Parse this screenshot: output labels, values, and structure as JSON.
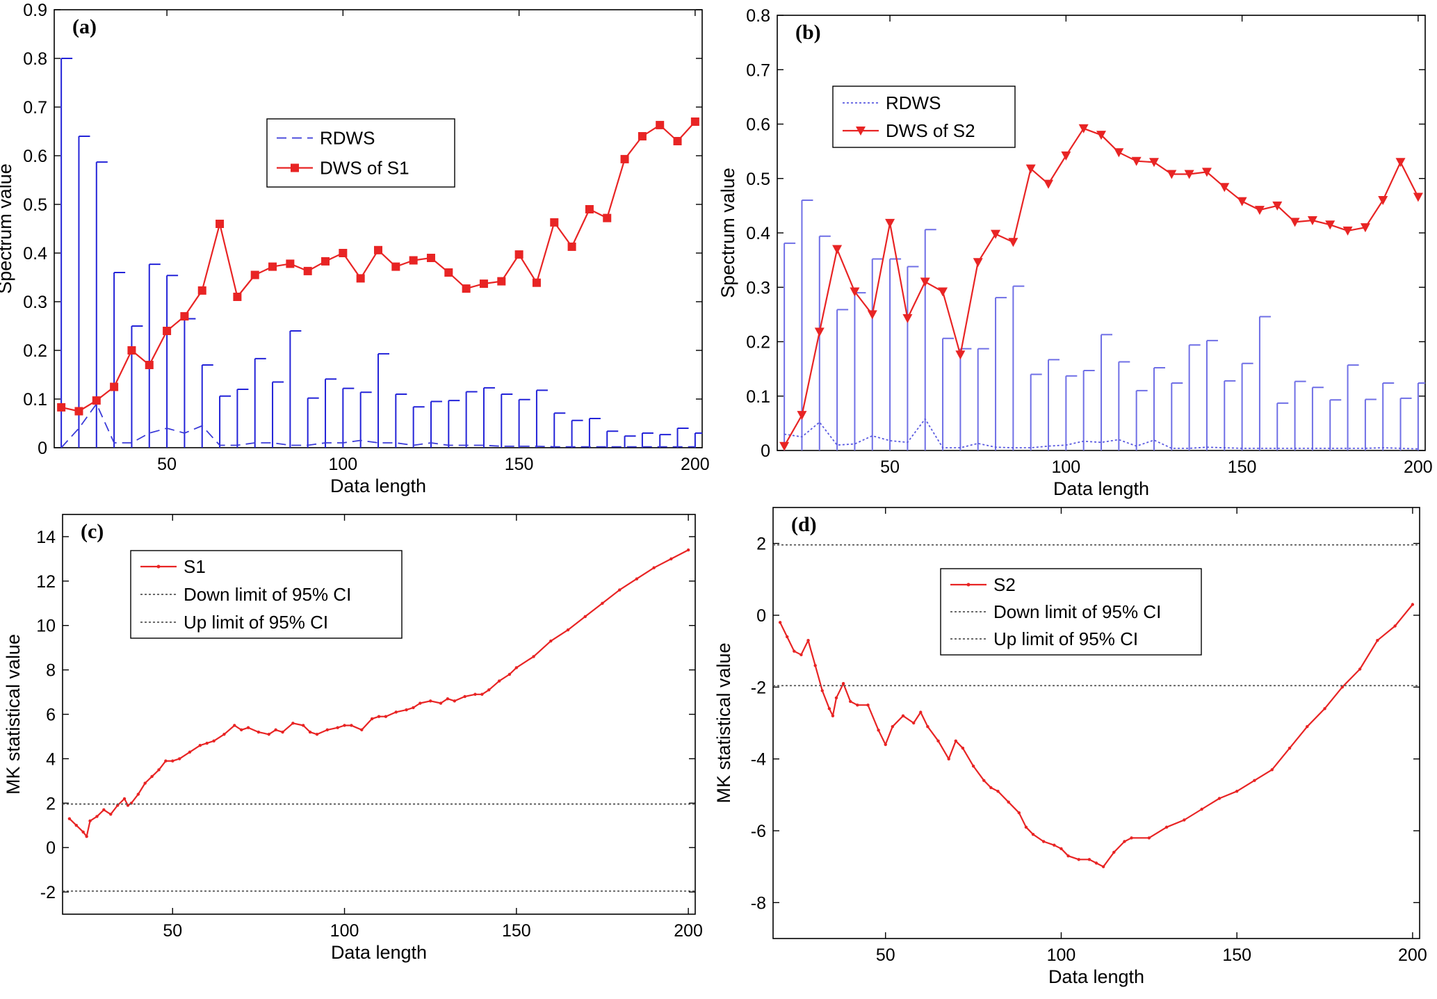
{
  "chart_data": [
    {
      "panel": "(a)",
      "type": "line",
      "xlabel": "Data length",
      "ylabel": "Spectrum value",
      "xlim": [
        18,
        202
      ],
      "ylim": [
        0,
        0.9
      ],
      "xticks": [
        50,
        100,
        150,
        200
      ],
      "yticks": [
        0,
        0.1,
        0.2,
        0.3,
        0.4,
        0.5,
        0.6,
        0.7,
        0.8,
        0.9
      ],
      "legend_position": "center",
      "errorbar_color": "#2323d8",
      "x": [
        20,
        25,
        30,
        35,
        40,
        45,
        50,
        55,
        60,
        65,
        70,
        75,
        80,
        85,
        90,
        95,
        100,
        105,
        110,
        115,
        120,
        125,
        130,
        135,
        140,
        145,
        150,
        155,
        160,
        165,
        170,
        175,
        180,
        185,
        190,
        195,
        200
      ],
      "series": [
        {
          "name": "RDWS",
          "style": "dashed",
          "color": "#3a3ad8",
          "values": [
            0.0,
            0.04,
            0.09,
            0.01,
            0.01,
            0.03,
            0.04,
            0.03,
            0.045,
            0.005,
            0.005,
            0.01,
            0.01,
            0.005,
            0.005,
            0.01,
            0.01,
            0.015,
            0.01,
            0.01,
            0.005,
            0.01,
            0.005,
            0.005,
            0.005,
            0.003,
            0.003,
            0.003,
            0.002,
            0.002,
            0.002,
            0.002,
            0.002,
            0.002,
            0.002,
            0.002,
            0.002
          ],
          "upper": [
            0.8,
            0.64,
            0.587,
            0.36,
            0.25,
            0.377,
            0.354,
            0.265,
            0.17,
            0.106,
            0.12,
            0.183,
            0.135,
            0.24,
            0.102,
            0.141,
            0.122,
            0.114,
            0.193,
            0.11,
            0.084,
            0.095,
            0.097,
            0.115,
            0.123,
            0.11,
            0.099,
            0.118,
            0.071,
            0.056,
            0.06,
            0.034,
            0.024,
            0.03,
            0.027,
            0.04,
            0.03
          ]
        },
        {
          "name": "DWS of S1",
          "style": "solid",
          "marker": "square",
          "color": "#e82424",
          "values": [
            0.083,
            0.075,
            0.097,
            0.125,
            0.2,
            0.17,
            0.24,
            0.27,
            0.323,
            0.46,
            0.31,
            0.355,
            0.372,
            0.378,
            0.363,
            0.383,
            0.4,
            0.348,
            0.406,
            0.372,
            0.385,
            0.39,
            0.36,
            0.327,
            0.337,
            0.342,
            0.397,
            0.339,
            0.463,
            0.413,
            0.49,
            0.472,
            0.593,
            0.64,
            0.663,
            0.63,
            0.67
          ]
        }
      ]
    },
    {
      "panel": "(b)",
      "type": "line",
      "xlabel": "Data length",
      "ylabel": "Spectrum value",
      "xlim": [
        18,
        202
      ],
      "ylim": [
        0,
        0.8
      ],
      "xticks": [
        50,
        100,
        150,
        200
      ],
      "yticks": [
        0,
        0.1,
        0.2,
        0.3,
        0.4,
        0.5,
        0.6,
        0.7,
        0.8
      ],
      "legend_position": "top-left",
      "errorbar_color": "#6f6fe6",
      "x": [
        20,
        25,
        30,
        35,
        40,
        45,
        50,
        55,
        60,
        65,
        70,
        75,
        80,
        85,
        90,
        95,
        100,
        105,
        110,
        115,
        120,
        125,
        130,
        135,
        140,
        145,
        150,
        155,
        160,
        165,
        170,
        175,
        180,
        185,
        190,
        195,
        200
      ],
      "series": [
        {
          "name": "RDWS",
          "style": "dotted",
          "color": "#5a5ae0",
          "values": [
            0.03,
            0.025,
            0.052,
            0.01,
            0.012,
            0.027,
            0.018,
            0.015,
            0.058,
            0.005,
            0.005,
            0.013,
            0.006,
            0.005,
            0.005,
            0.008,
            0.01,
            0.017,
            0.015,
            0.02,
            0.008,
            0.019,
            0.004,
            0.004,
            0.006,
            0.005,
            0.004,
            0.004,
            0.004,
            0.004,
            0.004,
            0.004,
            0.004,
            0.004,
            0.005,
            0.004,
            0.003
          ],
          "upper": [
            0.381,
            0.46,
            0.394,
            0.259,
            0.29,
            0.352,
            0.352,
            0.338,
            0.406,
            0.206,
            0.187,
            0.187,
            0.281,
            0.302,
            0.14,
            0.167,
            0.137,
            0.147,
            0.213,
            0.163,
            0.11,
            0.152,
            0.124,
            0.194,
            0.202,
            0.128,
            0.16,
            0.246,
            0.087,
            0.127,
            0.116,
            0.093,
            0.157,
            0.094,
            0.124,
            0.096,
            0.124
          ]
        },
        {
          "name": "DWS of S2",
          "style": "solid",
          "marker": "triangle-down",
          "color": "#e82424",
          "values": [
            0.008,
            0.065,
            0.218,
            0.37,
            0.292,
            0.25,
            0.418,
            0.243,
            0.31,
            0.292,
            0.176,
            0.346,
            0.398,
            0.383,
            0.518,
            0.49,
            0.542,
            0.592,
            0.58,
            0.548,
            0.532,
            0.53,
            0.508,
            0.508,
            0.512,
            0.484,
            0.458,
            0.442,
            0.45,
            0.42,
            0.423,
            0.415,
            0.404,
            0.41,
            0.46,
            0.53,
            0.466
          ]
        }
      ]
    },
    {
      "panel": "(c)",
      "type": "line",
      "xlabel": "Data length",
      "ylabel": "MK statistical value",
      "xlim": [
        18,
        202
      ],
      "ylim": [
        -3,
        15
      ],
      "xticks": [
        50,
        100,
        150,
        200
      ],
      "yticks": [
        -2,
        0,
        2,
        4,
        6,
        8,
        10,
        12,
        14
      ],
      "legend_position": "top-left",
      "series": [
        {
          "name": "S1",
          "style": "solid",
          "marker": "point",
          "color": "#e82424",
          "x": [
            20,
            22,
            24,
            25,
            26,
            28,
            30,
            32,
            34,
            36,
            37,
            38,
            40,
            42,
            44,
            46,
            48,
            50,
            52,
            55,
            58,
            60,
            62,
            65,
            68,
            70,
            72,
            75,
            78,
            80,
            82,
            85,
            88,
            90,
            92,
            95,
            98,
            100,
            102,
            105,
            108,
            110,
            112,
            115,
            118,
            120,
            122,
            125,
            128,
            130,
            132,
            135,
            138,
            140,
            142,
            145,
            148,
            150,
            155,
            160,
            165,
            170,
            175,
            180,
            185,
            190,
            195,
            200
          ],
          "values": [
            1.3,
            1.0,
            0.7,
            0.5,
            1.2,
            1.4,
            1.7,
            1.5,
            1.9,
            2.2,
            1.9,
            2.0,
            2.4,
            2.9,
            3.2,
            3.5,
            3.9,
            3.9,
            4.0,
            4.3,
            4.6,
            4.7,
            4.8,
            5.1,
            5.5,
            5.3,
            5.4,
            5.2,
            5.1,
            5.3,
            5.2,
            5.6,
            5.5,
            5.2,
            5.1,
            5.3,
            5.4,
            5.5,
            5.5,
            5.3,
            5.8,
            5.9,
            5.9,
            6.1,
            6.2,
            6.3,
            6.5,
            6.6,
            6.5,
            6.7,
            6.6,
            6.8,
            6.9,
            6.9,
            7.1,
            7.5,
            7.8,
            8.1,
            8.6,
            9.3,
            9.8,
            10.4,
            11.0,
            11.6,
            12.1,
            12.6,
            13.0,
            13.4
          ]
        },
        {
          "name": "Down limit of 95% CI",
          "style": "dotted",
          "color": "#555555",
          "constant": -1.96
        },
        {
          "name": "Up limit of 95% CI",
          "style": "dotted",
          "color": "#555555",
          "constant": 1.96
        }
      ],
      "legend": [
        "S1",
        "Down limit of 95% CI",
        "Up limit of 95% CI"
      ]
    },
    {
      "panel": "(d)",
      "type": "line",
      "xlabel": "Data length",
      "ylabel": "MK statistical value",
      "xlim": [
        18,
        202
      ],
      "ylim": [
        -9,
        3
      ],
      "xticks": [
        50,
        100,
        150,
        200
      ],
      "yticks": [
        -8,
        -6,
        -4,
        -2,
        0,
        2
      ],
      "legend_position": "top-left",
      "series": [
        {
          "name": "S2",
          "style": "solid",
          "marker": "point",
          "color": "#e82424",
          "x": [
            20,
            22,
            24,
            26,
            28,
            30,
            32,
            34,
            35,
            36,
            38,
            40,
            42,
            45,
            48,
            50,
            52,
            55,
            58,
            60,
            62,
            65,
            68,
            70,
            72,
            75,
            78,
            80,
            82,
            85,
            88,
            90,
            92,
            95,
            98,
            100,
            102,
            105,
            108,
            110,
            112,
            115,
            118,
            120,
            125,
            130,
            135,
            140,
            145,
            150,
            155,
            160,
            165,
            170,
            175,
            180,
            185,
            190,
            195,
            200
          ],
          "values": [
            -0.2,
            -0.6,
            -1.0,
            -1.1,
            -0.7,
            -1.4,
            -2.1,
            -2.6,
            -2.8,
            -2.3,
            -1.9,
            -2.4,
            -2.5,
            -2.5,
            -3.2,
            -3.6,
            -3.1,
            -2.8,
            -3.0,
            -2.7,
            -3.1,
            -3.5,
            -4.0,
            -3.5,
            -3.7,
            -4.2,
            -4.6,
            -4.8,
            -4.9,
            -5.2,
            -5.5,
            -5.9,
            -6.1,
            -6.3,
            -6.4,
            -6.5,
            -6.7,
            -6.8,
            -6.8,
            -6.9,
            -7.0,
            -6.6,
            -6.3,
            -6.2,
            -6.2,
            -5.9,
            -5.7,
            -5.4,
            -5.1,
            -4.9,
            -4.6,
            -4.3,
            -3.7,
            -3.1,
            -2.6,
            -2.0,
            -1.5,
            -0.7,
            -0.3,
            0.3
          ]
        },
        {
          "name": "Down limit of 95% CI",
          "style": "dotted",
          "color": "#555555",
          "constant": -1.96
        },
        {
          "name": "Up limit of 95% CI",
          "style": "dotted",
          "color": "#555555",
          "constant": 1.96
        }
      ],
      "legend": [
        "S2",
        "Down limit of 95% CI",
        "Up limit of 95% CI"
      ]
    }
  ]
}
